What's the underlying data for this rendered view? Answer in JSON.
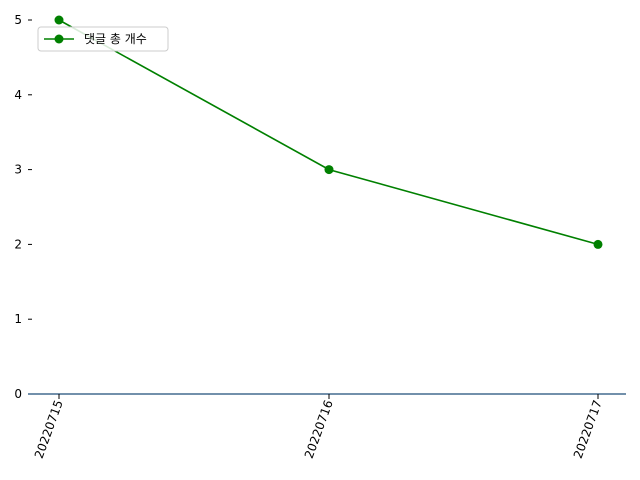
{
  "chart_data": {
    "type": "line",
    "categories": [
      "20220715",
      "20220716",
      "20220717"
    ],
    "series": [
      {
        "name": "댓글 총 개수",
        "values": [
          5,
          3,
          2
        ],
        "color": "#008000",
        "marker": "circle"
      }
    ],
    "ylim": [
      0,
      5
    ],
    "yticks": [
      "0",
      "1",
      "2",
      "3",
      "4",
      "5"
    ],
    "xtick_rotation": -70,
    "grid": false,
    "legend": "top-left",
    "baseline_color": "#1f4e79"
  }
}
